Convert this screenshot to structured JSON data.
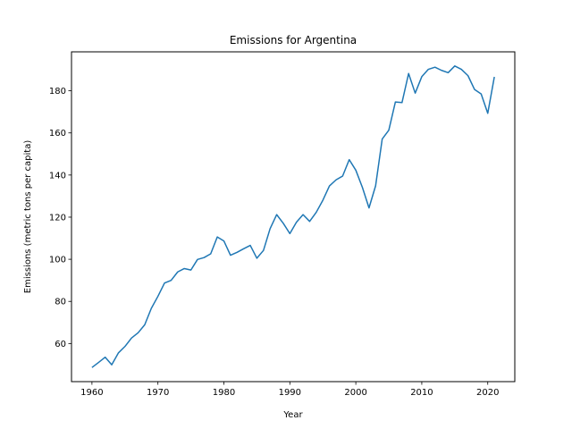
{
  "chart_data": {
    "type": "line",
    "title": "Emissions for Argentina",
    "xlabel": "Year",
    "ylabel": "Emissions (metric tons per capita)",
    "xlim": [
      1956.9,
      2024.1
    ],
    "ylim": [
      41.9,
      198.5
    ],
    "xticks": [
      1960,
      1970,
      1980,
      1990,
      2000,
      2010,
      2020
    ],
    "yticks": [
      60,
      80,
      100,
      120,
      140,
      160,
      180
    ],
    "grid": false,
    "line_color": "#1f77b4",
    "series": [
      {
        "x": [
          1960,
          1961,
          1962,
          1963,
          1964,
          1965,
          1966,
          1967,
          1968,
          1969,
          1970,
          1971,
          1972,
          1973,
          1974,
          1975,
          1976,
          1977,
          1978,
          1979,
          1980,
          1981,
          1982,
          1983,
          1984,
          1985,
          1986,
          1987,
          1988,
          1989,
          1990,
          1991,
          1992,
          1993,
          1994,
          1995,
          1996,
          1997,
          1998,
          1999,
          2000,
          2001,
          2002,
          2003,
          2004,
          2005,
          2006,
          2007,
          2008,
          2009,
          2010,
          2011,
          2012,
          2013,
          2014,
          2015,
          2016,
          2017,
          2018,
          2019,
          2020,
          2021
        ],
        "y": [
          48.6,
          51.0,
          53.5,
          49.9,
          55.5,
          58.6,
          62.6,
          65.1,
          68.9,
          76.7,
          82.4,
          88.7,
          90.0,
          94.0,
          95.6,
          94.9,
          99.9,
          100.8,
          102.6,
          110.6,
          108.7,
          101.9,
          103.3,
          105.0,
          106.6,
          100.5,
          104.2,
          114.5,
          121.2,
          117.1,
          112.2,
          117.6,
          121.2,
          118.0,
          122.3,
          128.0,
          134.8,
          137.7,
          139.5,
          147.3,
          142.3,
          134.1,
          124.4,
          134.9,
          157.1,
          161.3,
          174.7,
          174.4,
          188.2,
          178.9,
          186.7,
          190.2,
          191.2,
          189.7,
          188.6,
          191.8,
          190.2,
          187.2,
          180.6,
          178.5,
          169.3,
          186.6
        ]
      }
    ]
  }
}
